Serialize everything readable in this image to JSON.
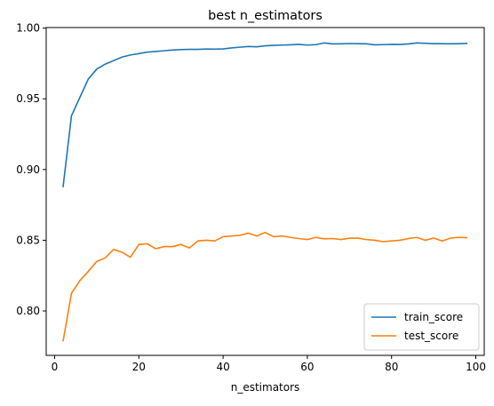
{
  "chart_data": {
    "type": "line",
    "title": "best n_estimators",
    "xlabel": "n_estimators",
    "ylabel": "",
    "xlim": [
      -2,
      102
    ],
    "ylim": [
      0.7686,
      1.0004
    ],
    "xticks": [
      0,
      20,
      40,
      60,
      80,
      100
    ],
    "xtick_labels": [
      "0",
      "20",
      "40",
      "60",
      "80",
      "100"
    ],
    "yticks": [
      0.8,
      0.85,
      0.9,
      0.95,
      1.0
    ],
    "ytick_labels": [
      "0.80",
      "0.85",
      "0.90",
      "0.95",
      "1.00"
    ],
    "grid": false,
    "legend_position": "lower-right",
    "x": [
      2,
      4,
      6,
      8,
      10,
      12,
      14,
      16,
      18,
      20,
      22,
      24,
      26,
      28,
      30,
      32,
      34,
      36,
      38,
      40,
      42,
      44,
      46,
      48,
      50,
      52,
      54,
      56,
      58,
      60,
      62,
      64,
      66,
      68,
      70,
      72,
      74,
      76,
      78,
      80,
      82,
      84,
      86,
      88,
      90,
      92,
      94,
      96,
      98
    ],
    "series": [
      {
        "name": "train_score",
        "color": "#1f77b4",
        "values": [
          0.8875,
          0.938,
          0.951,
          0.964,
          0.971,
          0.9745,
          0.977,
          0.9795,
          0.981,
          0.982,
          0.983,
          0.9835,
          0.984,
          0.9845,
          0.9848,
          0.985,
          0.985,
          0.9852,
          0.9851,
          0.9853,
          0.986,
          0.9865,
          0.987,
          0.9868,
          0.9875,
          0.9878,
          0.988,
          0.9882,
          0.9885,
          0.988,
          0.9883,
          0.9895,
          0.9888,
          0.9889,
          0.9891,
          0.989,
          0.9889,
          0.9882,
          0.9883,
          0.9885,
          0.9884,
          0.9888,
          0.9895,
          0.9893,
          0.989,
          0.989,
          0.9889,
          0.989,
          0.9892
        ]
      },
      {
        "name": "test_score",
        "color": "#ff7f0e",
        "values": [
          0.7785,
          0.8125,
          0.8215,
          0.828,
          0.835,
          0.8375,
          0.8435,
          0.8415,
          0.838,
          0.847,
          0.8475,
          0.844,
          0.8455,
          0.8455,
          0.847,
          0.8445,
          0.8495,
          0.85,
          0.8495,
          0.8525,
          0.853,
          0.8535,
          0.855,
          0.853,
          0.8555,
          0.8525,
          0.853,
          0.852,
          0.8512,
          0.8505,
          0.852,
          0.851,
          0.8512,
          0.8505,
          0.8515,
          0.8515,
          0.8505,
          0.85,
          0.849,
          0.8495,
          0.85,
          0.8512,
          0.852,
          0.85,
          0.8515,
          0.8495,
          0.8515,
          0.852,
          0.8518
        ]
      }
    ]
  }
}
